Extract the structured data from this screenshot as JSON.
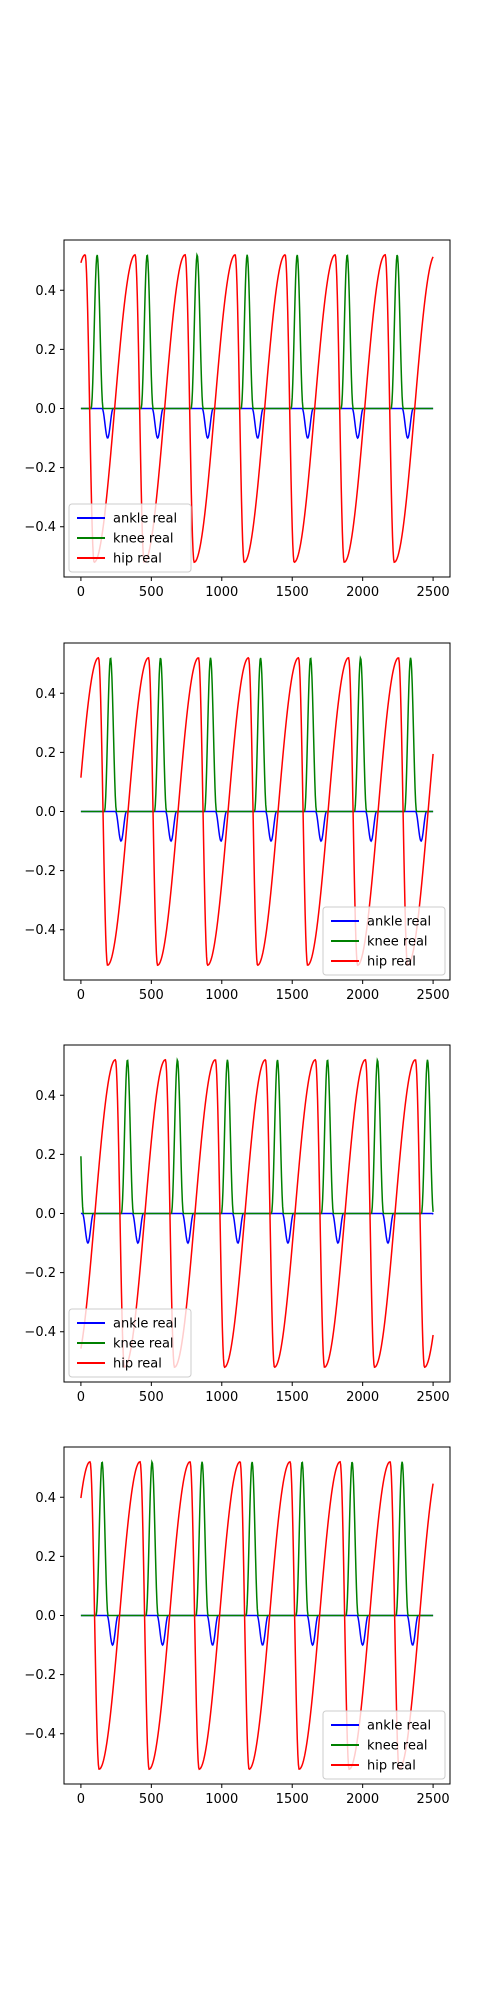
{
  "chart_data": [
    {
      "type": "line",
      "title": "",
      "xlabel": "",
      "ylabel": "",
      "xlim": [
        -120,
        2620
      ],
      "ylim": [
        -0.57,
        0.57
      ],
      "xticks": [
        0,
        500,
        1000,
        1500,
        2000,
        2500
      ],
      "yticks": [
        -0.4,
        -0.2,
        0.0,
        0.2,
        0.4
      ],
      "grid": false,
      "legend": "lower-left",
      "x": [
        0,
        2500
      ],
      "period": 355,
      "phase": 30,
      "series": [
        {
          "name": "ankle real",
          "color": "#0000ff",
          "peak": -0.1
        },
        {
          "name": "knee real",
          "color": "#008000",
          "peak": 0.52
        },
        {
          "name": "hip real",
          "color": "#ff0000",
          "peak": 0.52,
          "trough": -0.52
        }
      ]
    },
    {
      "type": "line",
      "title": "",
      "xlabel": "",
      "ylabel": "",
      "xlim": [
        -120,
        2620
      ],
      "ylim": [
        -0.57,
        0.57
      ],
      "xticks": [
        0,
        500,
        1000,
        1500,
        2000,
        2500
      ],
      "yticks": [
        -0.4,
        -0.2,
        0.0,
        0.2,
        0.4
      ],
      "grid": false,
      "legend": "lower-right",
      "x": [
        0,
        2500
      ],
      "period": 355,
      "phase": 125,
      "series": [
        {
          "name": "ankle real",
          "color": "#0000ff",
          "peak": -0.1
        },
        {
          "name": "knee real",
          "color": "#008000",
          "peak": 0.52
        },
        {
          "name": "hip real",
          "color": "#ff0000",
          "peak": 0.52,
          "trough": -0.52
        }
      ]
    },
    {
      "type": "line",
      "title": "",
      "xlabel": "",
      "ylabel": "",
      "xlim": [
        -120,
        2620
      ],
      "ylim": [
        -0.57,
        0.57
      ],
      "xticks": [
        0,
        500,
        1000,
        1500,
        2000,
        2500
      ],
      "yticks": [
        -0.4,
        -0.2,
        0.0,
        0.2,
        0.4
      ],
      "grid": false,
      "legend": "lower-left",
      "x": [
        0,
        2500
      ],
      "period": 355,
      "phase": 245,
      "series": [
        {
          "name": "ankle real",
          "color": "#0000ff",
          "peak": -0.1
        },
        {
          "name": "knee real",
          "color": "#008000",
          "peak": 0.52
        },
        {
          "name": "hip real",
          "color": "#ff0000",
          "peak": 0.52,
          "trough": -0.52
        }
      ]
    },
    {
      "type": "line",
      "title": "",
      "xlabel": "",
      "ylabel": "",
      "xlim": [
        -120,
        2620
      ],
      "ylim": [
        -0.57,
        0.57
      ],
      "xticks": [
        0,
        500,
        1000,
        1500,
        2000,
        2500
      ],
      "yticks": [
        -0.4,
        -0.2,
        0.0,
        0.2,
        0.4
      ],
      "grid": false,
      "legend": "lower-right",
      "x": [
        0,
        2500
      ],
      "period": 355,
      "phase": 65,
      "series": [
        {
          "name": "ankle real",
          "color": "#0000ff",
          "peak": -0.1
        },
        {
          "name": "knee real",
          "color": "#008000",
          "peak": 0.52
        },
        {
          "name": "hip real",
          "color": "#ff0000",
          "peak": 0.52,
          "trough": -0.52
        }
      ]
    }
  ]
}
